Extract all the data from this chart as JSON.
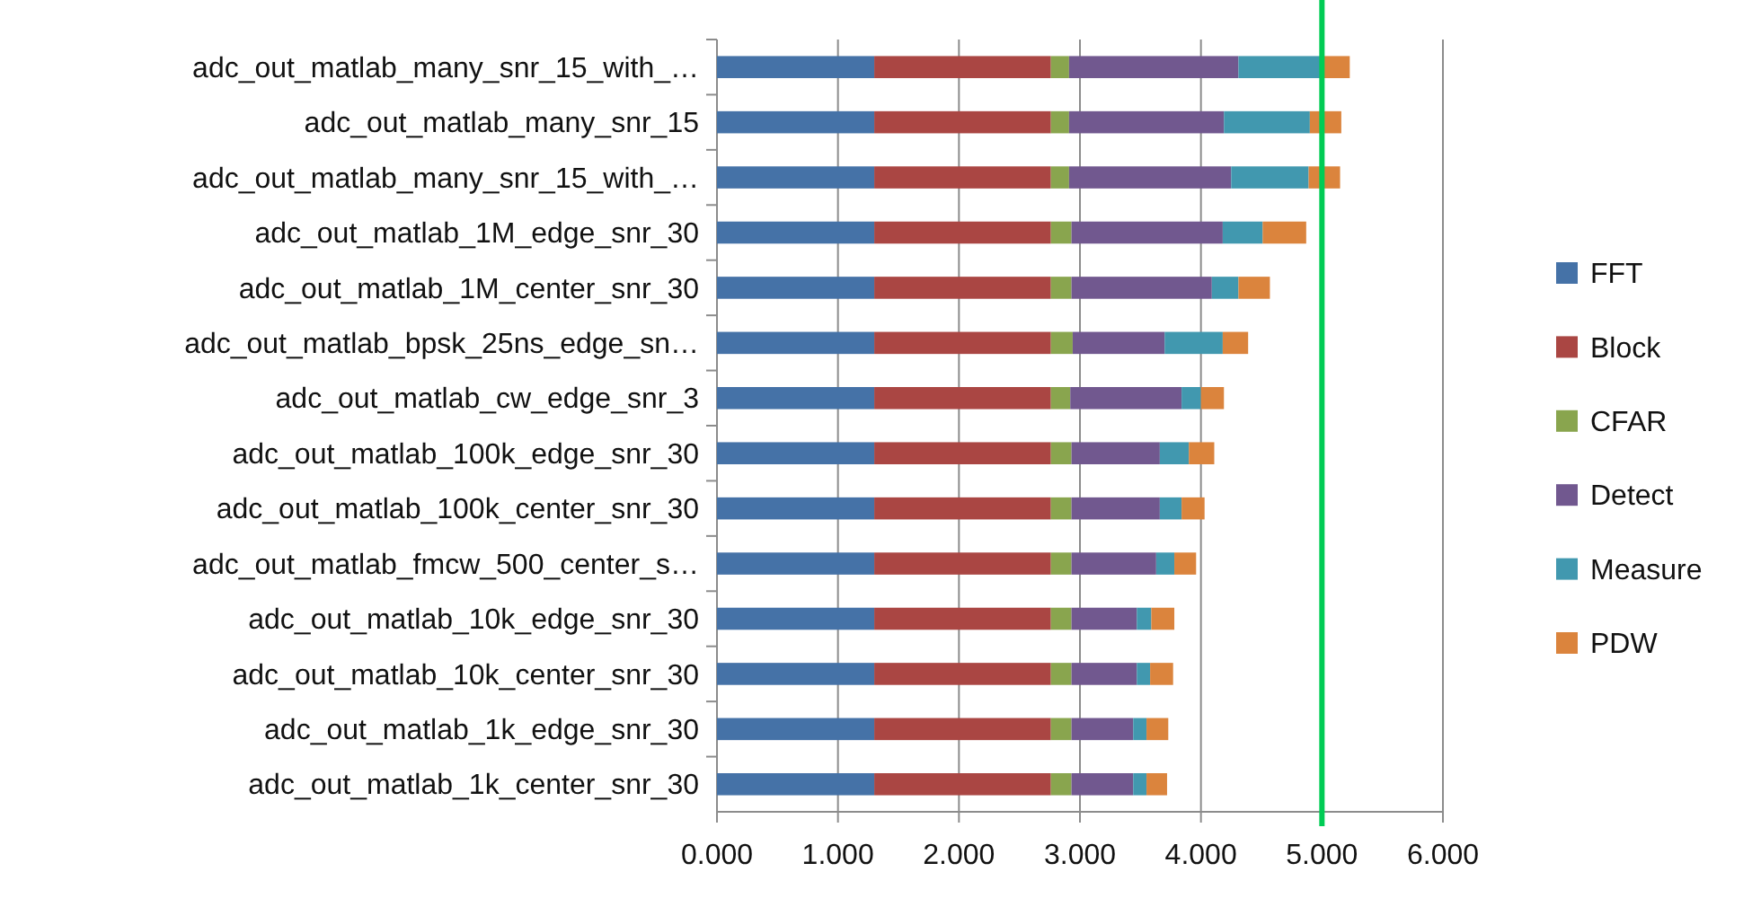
{
  "chart_data": {
    "type": "bar",
    "orientation": "horizontal",
    "stacked": true,
    "categories": [
      "adc_out_matlab_many_snr_15_with_…",
      "adc_out_matlab_many_snr_15",
      "adc_out_matlab_many_snr_15_with_…",
      "adc_out_matlab_1M_edge_snr_30",
      "adc_out_matlab_1M_center_snr_30",
      "adc_out_matlab_bpsk_25ns_edge_sn…",
      "adc_out_matlab_cw_edge_snr_3",
      "adc_out_matlab_100k_edge_snr_30",
      "adc_out_matlab_100k_center_snr_30",
      "adc_out_matlab_fmcw_500_center_s…",
      "adc_out_matlab_10k_edge_snr_30",
      "adc_out_matlab_10k_center_snr_30",
      "adc_out_matlab_1k_edge_snr_30",
      "adc_out_matlab_1k_center_snr_30"
    ],
    "series": [
      {
        "name": "FFT",
        "color": "#4572a7",
        "values": [
          1.3,
          1.3,
          1.3,
          1.3,
          1.3,
          1.3,
          1.3,
          1.3,
          1.3,
          1.3,
          1.3,
          1.3,
          1.3,
          1.3
        ]
      },
      {
        "name": "Block",
        "color": "#aa4643",
        "values": [
          1.46,
          1.46,
          1.46,
          1.46,
          1.46,
          1.46,
          1.46,
          1.46,
          1.46,
          1.46,
          1.46,
          1.46,
          1.46,
          1.46
        ]
      },
      {
        "name": "CFAR",
        "color": "#89a54e",
        "values": [
          0.15,
          0.15,
          0.15,
          0.17,
          0.17,
          0.18,
          0.16,
          0.17,
          0.17,
          0.17,
          0.17,
          0.17,
          0.17,
          0.17
        ]
      },
      {
        "name": "Detect",
        "color": "#71588f",
        "values": [
          1.4,
          1.28,
          1.34,
          1.25,
          1.16,
          0.76,
          0.92,
          0.73,
          0.73,
          0.7,
          0.54,
          0.54,
          0.51,
          0.51
        ]
      },
      {
        "name": "Measure",
        "color": "#4198af",
        "values": [
          0.69,
          0.71,
          0.64,
          0.33,
          0.22,
          0.48,
          0.16,
          0.24,
          0.18,
          0.15,
          0.12,
          0.11,
          0.11,
          0.11
        ]
      },
      {
        "name": "PDW",
        "color": "#db843d",
        "values": [
          0.23,
          0.26,
          0.26,
          0.36,
          0.26,
          0.21,
          0.19,
          0.21,
          0.19,
          0.18,
          0.19,
          0.19,
          0.18,
          0.17
        ]
      }
    ],
    "xlim": [
      0,
      6
    ],
    "xticks": [
      {
        "value": 0,
        "label": "0.000"
      },
      {
        "value": 1,
        "label": "1.000"
      },
      {
        "value": 2,
        "label": "2.000"
      },
      {
        "value": 3,
        "label": "3.000"
      },
      {
        "value": 4,
        "label": "4.000"
      },
      {
        "value": 5,
        "label": "5.000"
      },
      {
        "value": 6,
        "label": "6.000"
      }
    ],
    "ref_lines": [
      {
        "axis": "x",
        "value": 5,
        "color": "#00cc55"
      }
    ],
    "grid": "x",
    "legend": "right"
  }
}
